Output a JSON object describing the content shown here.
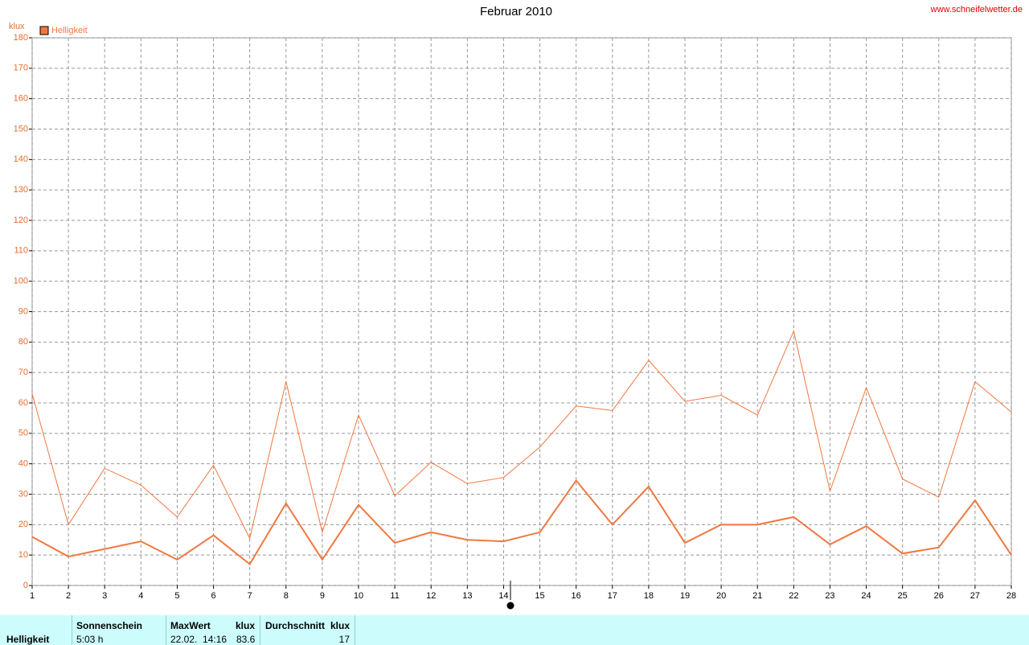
{
  "chart_data": {
    "type": "line",
    "title": "Februar 2010",
    "source": "www.schneifelwetter.de",
    "y_label": "klux",
    "x": [
      1,
      2,
      3,
      4,
      5,
      6,
      7,
      8,
      9,
      10,
      11,
      12,
      13,
      14,
      15,
      16,
      17,
      18,
      19,
      20,
      21,
      22,
      23,
      24,
      25,
      26,
      27,
      28
    ],
    "xlim": [
      1,
      28
    ],
    "xticks": [
      1,
      2,
      3,
      4,
      5,
      6,
      7,
      8,
      9,
      10,
      11,
      12,
      13,
      14,
      15,
      16,
      17,
      18,
      19,
      20,
      21,
      22,
      23,
      24,
      25,
      26,
      27,
      28
    ],
    "ylim": [
      0,
      180
    ],
    "yticks": [
      0,
      10,
      20,
      30,
      40,
      50,
      60,
      70,
      80,
      90,
      100,
      110,
      120,
      130,
      140,
      150,
      160,
      170,
      180
    ],
    "grid": true,
    "legend": "top-left",
    "series": [
      {
        "name": "Helligkeit",
        "color": "#f07840",
        "width": 1,
        "values": [
          63,
          20,
          38.5,
          33,
          22.5,
          39.5,
          15.5,
          67,
          17.5,
          56,
          29.5,
          40.5,
          33.5,
          35.5,
          45.5,
          59,
          57.5,
          74,
          60.5,
          62.5,
          56,
          83.6,
          31,
          65,
          35,
          29,
          67,
          57
        ]
      },
      {
        "color": "#f07840",
        "width": 2,
        "values": [
          16,
          9.5,
          12,
          14.5,
          8.5,
          16.5,
          7,
          27,
          8.5,
          26.5,
          14,
          17.5,
          15,
          14.5,
          17.5,
          34.5,
          20,
          32.5,
          14,
          20,
          20,
          22.5,
          13.5,
          19.5,
          10.5,
          12.5,
          28,
          10
        ]
      }
    ]
  },
  "summary": {
    "row_label": "Helligkeit",
    "columns": [
      {
        "header": "Sonnenschein",
        "value": "5:03 h"
      },
      {
        "header": "MaxWert",
        "unit": "klux",
        "date": "22.02.  14:16",
        "value": "83.6"
      },
      {
        "header": "Durchschnitt",
        "unit": "klux",
        "value": "17"
      }
    ]
  }
}
